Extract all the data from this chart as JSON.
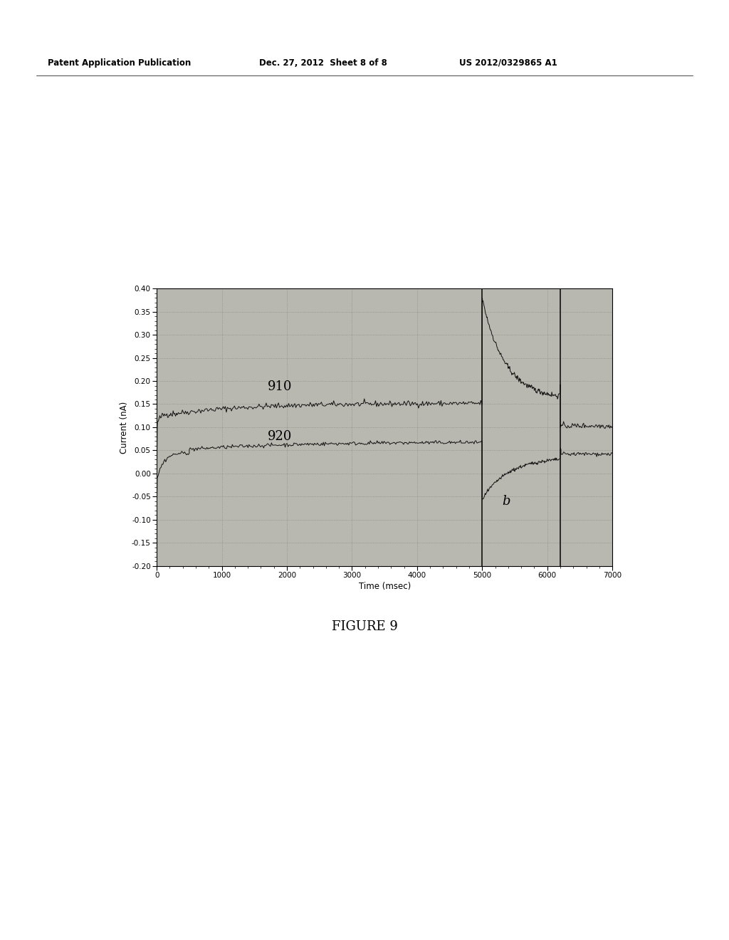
{
  "header_left": "Patent Application Publication",
  "header_mid": "Dec. 27, 2012  Sheet 8 of 8",
  "header_right": "US 2012/0329865 A1",
  "figure_caption": "FIGURE 9",
  "xlabel": "Time (msec)",
  "ylabel": "Current (nA)",
  "xlim": [
    0,
    7000
  ],
  "ylim": [
    -0.2,
    0.4
  ],
  "yticks": [
    -0.2,
    -0.15,
    -0.1,
    -0.05,
    0.0,
    0.05,
    0.1,
    0.15,
    0.2,
    0.25,
    0.3,
    0.35,
    0.4
  ],
  "xticks": [
    0,
    1000,
    2000,
    3000,
    4000,
    5000,
    6000,
    7000
  ],
  "label_910": "910",
  "label_920": "920",
  "label_b": "b",
  "bg_color": "#b8b8b0",
  "line_color": "#111111",
  "grid_color": "#777770",
  "fig_bg": "#ffffff"
}
